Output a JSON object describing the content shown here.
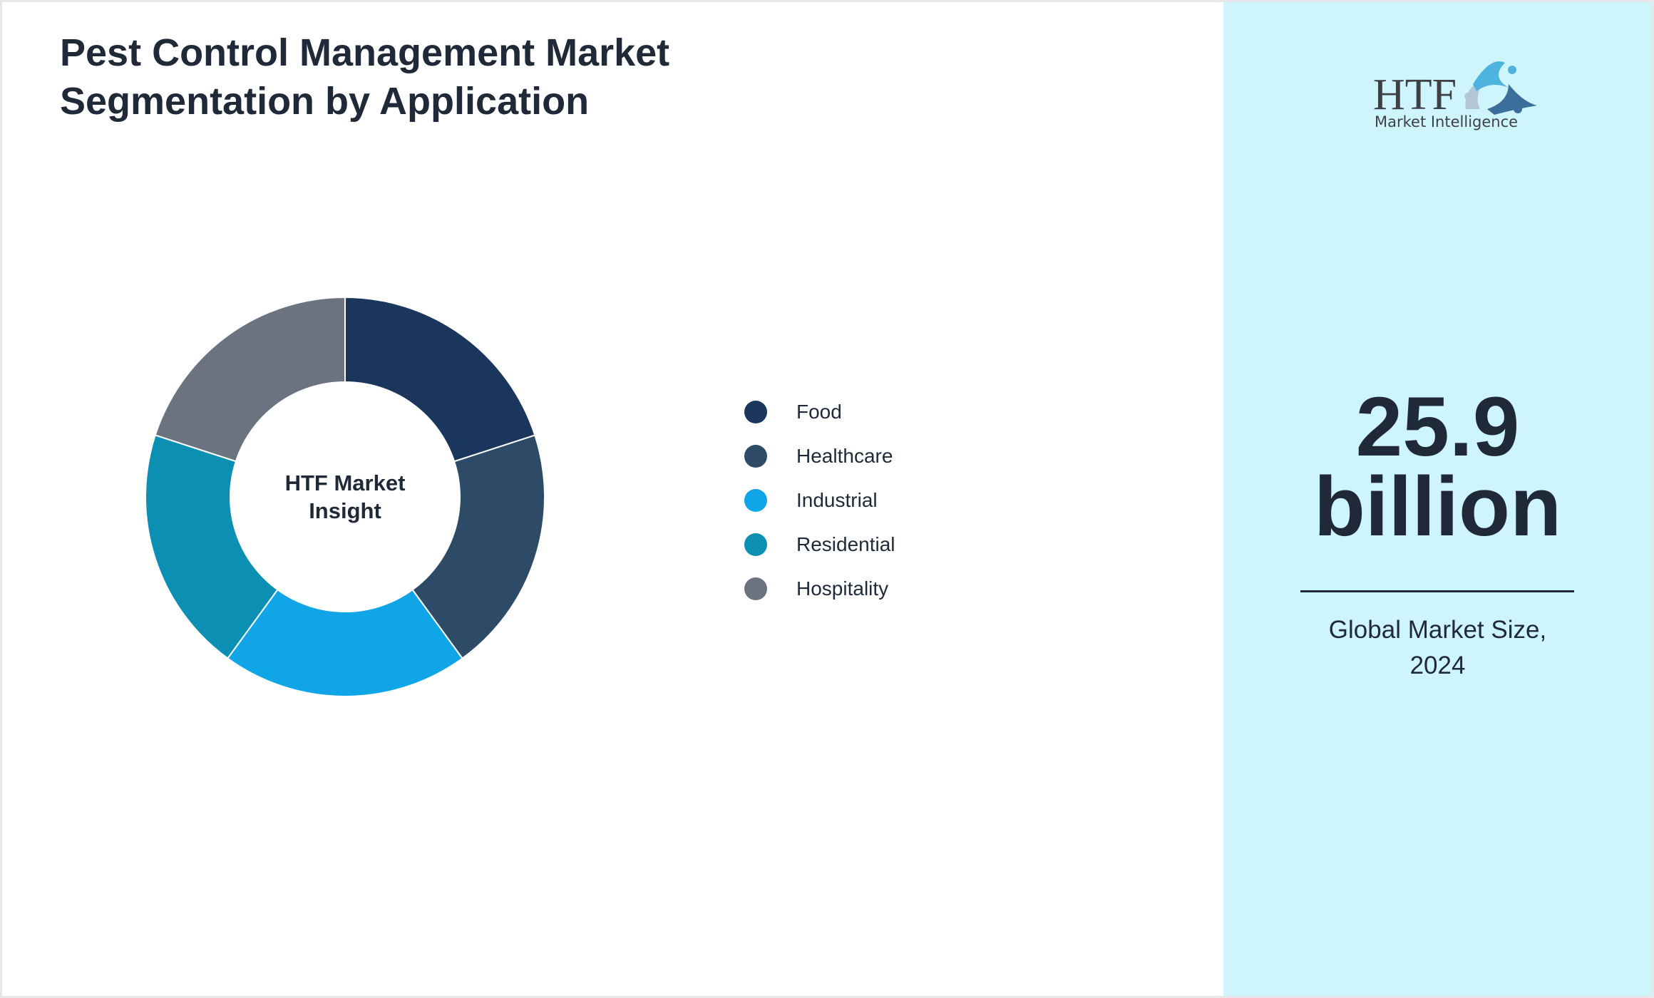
{
  "title_lines": [
    "Pest Control Management Market",
    "Segmentation by Application"
  ],
  "chart_data": {
    "type": "pie",
    "variant": "donut",
    "categories": [
      "Food",
      "Healthcare",
      "Industrial",
      "Residential",
      "Hospitality"
    ],
    "values": [
      20,
      20,
      20,
      20,
      20
    ],
    "colors": [
      "#1b365d",
      "#2d4a66",
      "#10a5e6",
      "#0b90b3",
      "#6b7280"
    ],
    "center_label_lines": [
      "HTF Market",
      "Insight"
    ],
    "legend_position": "right"
  },
  "side_panel": {
    "logo_text": "HTF",
    "logo_subtext": "Market Intelligence",
    "value_line1": "25.9",
    "value_line2": "billion",
    "caption_line1": "Global Market Size,",
    "caption_line2": "2024",
    "background": "#cff5fc"
  }
}
